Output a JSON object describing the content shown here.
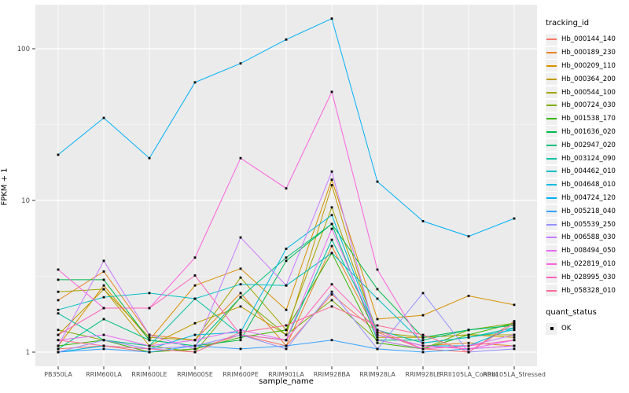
{
  "figure": {
    "xlabel": "sample_name",
    "ylabel": "FPKM + 1"
  },
  "legend": {
    "tracking_title": "tracking_id",
    "quant_title": "quant_status",
    "quant_ok_label": "OK",
    "key_fill": "#F0F0F0",
    "point_color": "#000000"
  },
  "chart_data": {
    "type": "line",
    "title": "",
    "xlabel": "sample_name",
    "ylabel": "FPKM + 1",
    "x_categories": [
      "PB350LA",
      "RRIM600LA",
      "RRIM600LE",
      "RRIM600SE",
      "RRIM600PE",
      "RRIM901LA",
      "RRIM928BA",
      "RRIM928LA",
      "RRIM928LE",
      "RRII105LA_Control",
      "RRII105LA_Stressed"
    ],
    "y_scale": "log10",
    "y_ticks": [
      1,
      10,
      100
    ],
    "y_minor_ticks": [
      3.162,
      31.623
    ],
    "ylim": [
      0.93,
      190
    ],
    "grid": "white-on-gray",
    "panel_bg": "#EBEBEB",
    "grid_color": "#FFFFFF",
    "tick_label_color": "#4D4D4D",
    "marker": "black-square",
    "legend_position": "right",
    "series": [
      {
        "name": "Hb_000144_140",
        "color": "#F8766D",
        "values": [
          1.05,
          1.1,
          1.0,
          1.05,
          1.3,
          1.1,
          2.4,
          1.35,
          1.05,
          1.0,
          1.6
        ]
      },
      {
        "name": "Hb_000189_230",
        "color": "#E88526",
        "values": [
          2.2,
          3.4,
          1.3,
          1.2,
          2.45,
          1.1,
          5.0,
          1.3,
          1.1,
          1.15,
          1.1
        ]
      },
      {
        "name": "Hb_000209_110",
        "color": "#D89000",
        "values": [
          1.1,
          2.75,
          1.2,
          2.75,
          3.55,
          1.9,
          13.7,
          1.65,
          1.75,
          2.35,
          2.05
        ]
      },
      {
        "name": "Hb_000364_200",
        "color": "#C09B00",
        "values": [
          1.3,
          2.6,
          1.1,
          1.55,
          2.0,
          1.3,
          12.6,
          1.25,
          1.25,
          1.3,
          1.25
        ]
      },
      {
        "name": "Hb_000544_100",
        "color": "#A3A500",
        "values": [
          2.5,
          2.6,
          1.25,
          1.2,
          3.1,
          1.4,
          9.0,
          1.35,
          1.25,
          1.3,
          1.3
        ]
      },
      {
        "name": "Hb_000724_030",
        "color": "#7CAE00",
        "values": [
          1.4,
          1.2,
          1.1,
          1.0,
          2.3,
          1.3,
          2.2,
          1.2,
          1.05,
          1.4,
          1.55
        ]
      },
      {
        "name": "Hb_001538_170",
        "color": "#39B600",
        "values": [
          1.1,
          1.2,
          1.0,
          1.05,
          1.25,
          1.4,
          4.5,
          1.15,
          1.05,
          1.3,
          1.55
        ]
      },
      {
        "name": "Hb_001636_020",
        "color": "#00BB4E",
        "values": [
          3.0,
          3.0,
          1.2,
          1.1,
          1.2,
          4.0,
          7.0,
          2.6,
          1.25,
          1.4,
          1.5
        ]
      },
      {
        "name": "Hb_002947_020",
        "color": "#00BF7D",
        "values": [
          1.05,
          1.65,
          1.2,
          1.1,
          2.3,
          4.2,
          7.0,
          1.2,
          1.2,
          1.4,
          1.5
        ]
      },
      {
        "name": "Hb_003124_090",
        "color": "#00C1A3",
        "values": [
          1.8,
          1.2,
          1.1,
          2.25,
          1.3,
          1.2,
          5.5,
          1.4,
          1.15,
          1.25,
          1.45
        ]
      },
      {
        "name": "Hb_004462_010",
        "color": "#00BFC4",
        "values": [
          1.9,
          2.3,
          2.45,
          2.25,
          2.8,
          2.75,
          4.5,
          2.25,
          1.15,
          1.25,
          1.4
        ]
      },
      {
        "name": "Hb_004648_010",
        "color": "#00BAE0",
        "values": [
          1.0,
          1.1,
          1.05,
          1.3,
          1.35,
          4.8,
          8.0,
          1.3,
          1.1,
          1.1,
          1.45
        ]
      },
      {
        "name": "Hb_004724_120",
        "color": "#00B0F6",
        "values": [
          20,
          35,
          19,
          60,
          80,
          115,
          158,
          13.3,
          7.3,
          5.8,
          7.6
        ]
      },
      {
        "name": "Hb_005218_040",
        "color": "#35A2FF",
        "values": [
          1.0,
          1.05,
          1.0,
          1.1,
          1.05,
          1.1,
          1.2,
          1.05,
          1.0,
          1.05,
          1.1
        ]
      },
      {
        "name": "Hb_005539_250",
        "color": "#9590FF",
        "values": [
          1.0,
          1.2,
          1.05,
          1.1,
          1.3,
          1.05,
          2.5,
          1.05,
          2.45,
          1.0,
          1.05
        ]
      },
      {
        "name": "Hb_006588_030",
        "color": "#C77CFF",
        "values": [
          1.1,
          4.0,
          1.3,
          1.05,
          5.7,
          2.75,
          15.5,
          1.2,
          1.05,
          1.1,
          1.3
        ]
      },
      {
        "name": "Hb_008494_050",
        "color": "#E76BF3",
        "values": [
          1.2,
          1.3,
          1.1,
          1.2,
          1.4,
          1.2,
          6.5,
          1.3,
          1.1,
          1.05,
          1.2
        ]
      },
      {
        "name": "Hb_022819_010",
        "color": "#FA62DB",
        "values": [
          3.5,
          1.95,
          1.95,
          4.2,
          19,
          12,
          52,
          3.5,
          1.1,
          1.05,
          1.1
        ]
      },
      {
        "name": "Hb_028995_030",
        "color": "#FF62BC",
        "values": [
          1.3,
          1.95,
          1.95,
          3.2,
          1.3,
          1.2,
          2.8,
          1.4,
          1.05,
          1.1,
          1.2
        ]
      },
      {
        "name": "Hb_058328_010",
        "color": "#FF6A98",
        "values": [
          1.2,
          1.1,
          1.05,
          1.0,
          1.35,
          1.5,
          2.0,
          1.5,
          1.3,
          1.0,
          1.55
        ]
      }
    ]
  }
}
